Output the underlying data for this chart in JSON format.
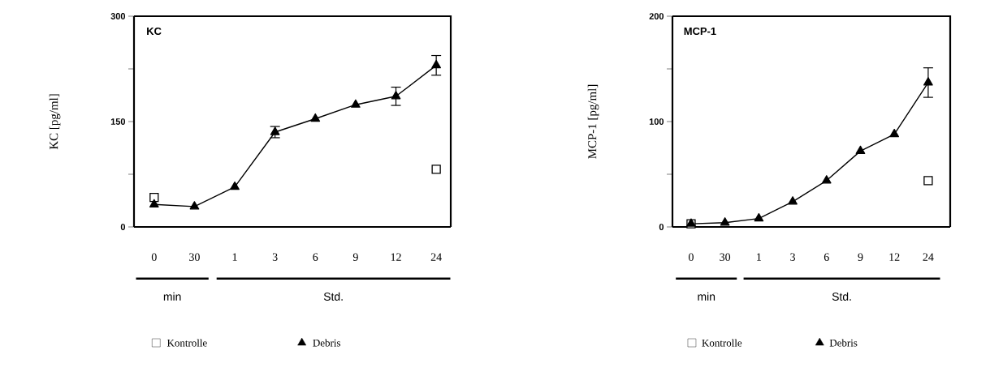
{
  "chart_data": [
    {
      "type": "line",
      "title": "KC",
      "ylabel": "KC [pg/ml]",
      "categories": [
        "0",
        "30",
        "1",
        "3",
        "6",
        "9",
        "12",
        "24"
      ],
      "ylim": [
        0,
        300
      ],
      "yticks": [
        0,
        {
          "value": 75,
          "label": null
        },
        150,
        {
          "value": 225,
          "label": null
        },
        300
      ],
      "legend": "bottom",
      "annotations": [
        "min",
        "Std."
      ],
      "series": [
        {
          "name": "Kontrolle",
          "type": "scatter",
          "marker": "square",
          "color": "#000000",
          "values": [
            42,
            null,
            null,
            null,
            null,
            null,
            null,
            82
          ]
        },
        {
          "name": "Debris",
          "marker": "triangle",
          "color": "#000000",
          "values": [
            32,
            29,
            57,
            135,
            154,
            174,
            186,
            230
          ],
          "errors": [
            null,
            null,
            null,
            8,
            null,
            null,
            13,
            14
          ]
        }
      ]
    },
    {
      "type": "line",
      "title": "MCP-1",
      "ylabel": "MCP-1 [pg/ml]",
      "categories": [
        "0",
        "30",
        "1",
        "3",
        "6",
        "9",
        "12",
        "24"
      ],
      "ylim": [
        0,
        200
      ],
      "yticks": [
        0,
        {
          "value": 50,
          "label": null
        },
        100,
        {
          "value": 150,
          "label": null
        },
        200
      ],
      "legend": "bottom",
      "annotations": [
        "min",
        "Std."
      ],
      "series": [
        {
          "name": "Kontrolle",
          "type": "scatter",
          "marker": "square",
          "color": "#000000",
          "values": [
            3,
            null,
            null,
            null,
            null,
            null,
            null,
            44
          ]
        },
        {
          "name": "Debris",
          "marker": "triangle",
          "color": "#000000",
          "values": [
            3,
            4,
            8,
            24,
            44,
            72,
            88,
            137
          ],
          "errors": [
            null,
            null,
            null,
            null,
            null,
            null,
            null,
            14
          ]
        }
      ]
    }
  ]
}
